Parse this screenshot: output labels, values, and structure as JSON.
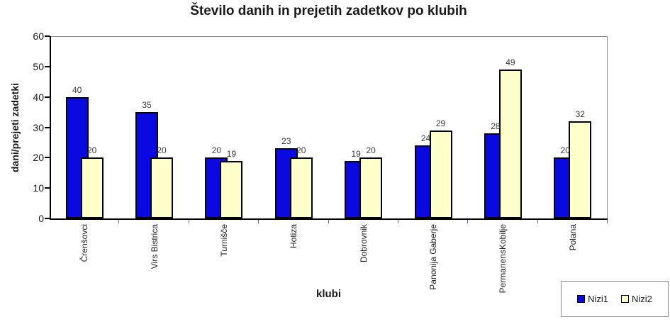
{
  "chart_data": {
    "type": "bar",
    "title": "Število danih in prejetih zadetkov po klubih",
    "xlabel": "klubi",
    "ylabel": "dani/prejeti zadetki",
    "categories": [
      "Črenšovci",
      "Virs Bistrica",
      "Turnišče",
      "Hotiza",
      "Dobrovnik",
      "Panonija Gaberje",
      "PermanensKobilje",
      "Polana"
    ],
    "series": [
      {
        "name": "Nizi1",
        "values": [
          40,
          35,
          20,
          23,
          19,
          24,
          28,
          20
        ],
        "fill": "#0a0ae0",
        "border": "#000000"
      },
      {
        "name": "Nizi2",
        "values": [
          20,
          20,
          19,
          20,
          20,
          29,
          49,
          32
        ],
        "fill": "#ffffcc",
        "border": "#000000"
      }
    ],
    "ylim": [
      0,
      60
    ],
    "yticks": [
      0,
      10,
      20,
      30,
      40,
      50,
      60
    ],
    "grid": false,
    "legend_position": "bottom-right",
    "data_labels": true
  },
  "colors": {
    "background": "#ffffff",
    "plot_border": "#8c8c8c",
    "axis": "#000000",
    "data_label_text": "#3a3a3a"
  }
}
